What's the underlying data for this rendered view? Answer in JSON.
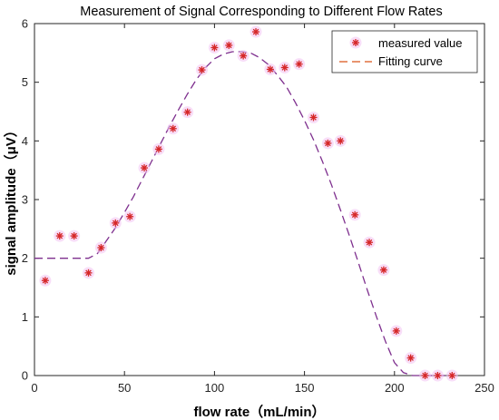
{
  "chart_data": {
    "type": "scatter",
    "title": "Measurement of Signal Corresponding to Different Flow Rates",
    "xlabel": "flow rate（mL/min）",
    "ylabel": "signal amplitude（μV）",
    "xlim": [
      0,
      250
    ],
    "ylim": [
      0,
      6
    ],
    "xticks": [
      0,
      50,
      100,
      150,
      200,
      250
    ],
    "yticks": [
      0,
      1,
      2,
      3,
      4,
      5,
      6
    ],
    "grid": false,
    "legend_position": "top-right",
    "series": [
      {
        "name": "measured value",
        "kind": "markers",
        "marker": "asterisk",
        "color": "#d62728",
        "x": [
          6,
          14,
          22,
          30,
          37,
          45,
          53,
          61,
          69,
          77,
          85,
          93,
          100,
          108,
          116,
          123,
          131,
          139,
          147,
          155,
          163,
          170,
          178,
          186,
          194,
          201,
          209,
          217,
          224,
          232
        ],
        "y": [
          1.62,
          2.38,
          2.38,
          1.75,
          2.18,
          2.6,
          2.71,
          3.54,
          3.86,
          4.21,
          4.49,
          5.21,
          5.59,
          5.63,
          5.45,
          5.86,
          5.22,
          5.25,
          5.31,
          4.4,
          3.96,
          4.0,
          2.74,
          2.27,
          1.8,
          0.76,
          0.3,
          0.0,
          0.0,
          0.0
        ]
      },
      {
        "name": "Fitting curve",
        "kind": "line",
        "dash": "dashed",
        "color": "#7e2f8e",
        "x": [
          0,
          30,
          35,
          40,
          45,
          50,
          55,
          60,
          65,
          70,
          75,
          80,
          85,
          90,
          95,
          100,
          105,
          110,
          115,
          120,
          125,
          130,
          135,
          140,
          145,
          150,
          155,
          160,
          165,
          170,
          175,
          180,
          185,
          190,
          195,
          200,
          205,
          210,
          215,
          220,
          225,
          230
        ],
        "y": [
          2.0,
          2.0,
          2.08,
          2.3,
          2.52,
          2.78,
          3.05,
          3.35,
          3.65,
          3.95,
          4.25,
          4.53,
          4.8,
          5.05,
          5.25,
          5.4,
          5.48,
          5.52,
          5.52,
          5.5,
          5.42,
          5.3,
          5.12,
          4.92,
          4.65,
          4.35,
          4.02,
          3.65,
          3.25,
          2.82,
          2.38,
          1.92,
          1.45,
          1.0,
          0.58,
          0.22,
          0.05,
          0.0,
          0.0,
          0.0,
          0.0,
          0.0
        ]
      }
    ]
  },
  "colors": {
    "marker": "#d62728",
    "marker_highlight": "#f3c3f3",
    "fit_line": "#7e2f8e",
    "axis": "#262626"
  }
}
